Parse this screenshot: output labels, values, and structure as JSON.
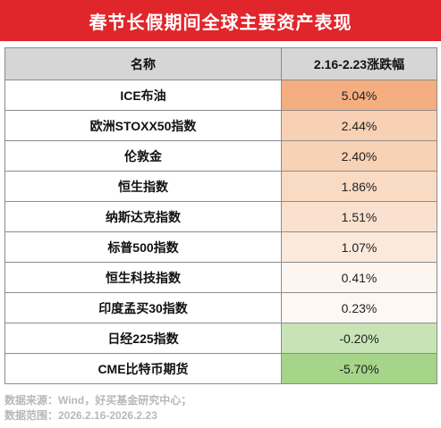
{
  "title": "春节长假期间全球主要资产表现",
  "table": {
    "header_name": "名称",
    "header_value": "2.16-2.23涨跌幅"
  },
  "chart_data": {
    "type": "table",
    "title": "春节长假期间全球主要资产表现",
    "columns": [
      "名称",
      "2.16-2.23涨跌幅"
    ],
    "rows": [
      {
        "name": "ICE布油",
        "value": 5.04,
        "label": "5.04%",
        "color": "#f5ae80"
      },
      {
        "name": "欧洲STOXX50指数",
        "value": 2.44,
        "label": "2.44%",
        "color": "#f8d1b4"
      },
      {
        "name": "伦敦金",
        "value": 2.4,
        "label": "2.40%",
        "color": "#f8d2b5"
      },
      {
        "name": "恒生指数",
        "value": 1.86,
        "label": "1.86%",
        "color": "#f9dbc4"
      },
      {
        "name": "纳斯达克指数",
        "value": 1.51,
        "label": "1.51%",
        "color": "#fae1cf"
      },
      {
        "name": "标普500指数",
        "value": 1.07,
        "label": "1.07%",
        "color": "#fbe9dc"
      },
      {
        "name": "恒生科技指数",
        "value": 0.41,
        "label": "0.41%",
        "color": "#fdf5ef"
      },
      {
        "name": "印度孟买30指数",
        "value": 0.23,
        "label": "0.23%",
        "color": "#fdf8f4"
      },
      {
        "name": "日经225指数",
        "value": -0.2,
        "label": "-0.20%",
        "color": "#c8e4b7"
      },
      {
        "name": "CME比特币期货",
        "value": -5.7,
        "label": "-5.70%",
        "color": "#a6d488"
      }
    ]
  },
  "source": {
    "line1": "数据来源：Wind，好买基金研究中心；",
    "line2": "数据范围：2026.2.16-2026.2.23"
  }
}
